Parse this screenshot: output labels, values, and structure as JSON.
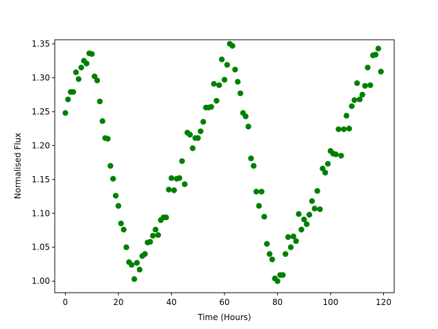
{
  "chart_data": {
    "type": "scatter",
    "title": "",
    "xlabel": "Time (Hours)",
    "ylabel": "Normalised Flux",
    "xlim": [
      -4,
      124
    ],
    "ylim": [
      0.983,
      1.356
    ],
    "xticks": [
      0,
      20,
      40,
      60,
      80,
      100,
      120
    ],
    "yticks": [
      1.0,
      1.05,
      1.1,
      1.15,
      1.2,
      1.25,
      1.3,
      1.35
    ],
    "xtick_labels": [
      "0",
      "20",
      "40",
      "60",
      "80",
      "100",
      "120"
    ],
    "ytick_labels": [
      "1.00",
      "1.05",
      "1.10",
      "1.15",
      "1.20",
      "1.25",
      "1.30",
      "1.35"
    ],
    "grid": false,
    "marker_color": "#008000",
    "series": [
      {
        "x": [
          0,
          1,
          2,
          3,
          4,
          5,
          6,
          7,
          8,
          9,
          10,
          11,
          12,
          13,
          14,
          15,
          16,
          17,
          18,
          19,
          20,
          21,
          22,
          23,
          24,
          25,
          26,
          27,
          28,
          29,
          30,
          31,
          32,
          33,
          34,
          35,
          36,
          37,
          38,
          39,
          40,
          41,
          42,
          43,
          44,
          45,
          46,
          47,
          48,
          49,
          50,
          51,
          52,
          53,
          54,
          55,
          56,
          57,
          58,
          59,
          60,
          61,
          62,
          63,
          64,
          65,
          66,
          67,
          68,
          69,
          70,
          71,
          72,
          73,
          74,
          75,
          76,
          77,
          78,
          79,
          80,
          81,
          82,
          83,
          84,
          85,
          86,
          87,
          88,
          89,
          90,
          91,
          92,
          93,
          94,
          95,
          96,
          97,
          98,
          99,
          100,
          101,
          102,
          103,
          104,
          105,
          106,
          107,
          108,
          109,
          110,
          111,
          112,
          113,
          114,
          115,
          116,
          117,
          118,
          119
        ],
        "y": [
          1.248,
          1.268,
          1.279,
          1.279,
          1.308,
          1.298,
          1.315,
          1.325,
          1.321,
          1.336,
          1.335,
          1.302,
          1.296,
          1.265,
          1.236,
          1.211,
          1.21,
          1.17,
          1.151,
          1.126,
          1.111,
          1.085,
          1.076,
          1.05,
          1.028,
          1.024,
          1.003,
          1.027,
          1.017,
          1.037,
          1.04,
          1.057,
          1.058,
          1.067,
          1.076,
          1.068,
          1.09,
          1.094,
          1.094,
          1.135,
          1.152,
          1.134,
          1.151,
          1.152,
          1.177,
          1.143,
          1.219,
          1.216,
          1.196,
          1.211,
          1.211,
          1.221,
          1.235,
          1.256,
          1.256,
          1.257,
          1.291,
          1.266,
          1.289,
          1.327,
          1.297,
          1.319,
          1.35,
          1.347,
          1.312,
          1.294,
          1.277,
          1.248,
          1.243,
          1.228,
          1.181,
          1.17,
          1.132,
          1.111,
          1.132,
          1.095,
          1.055,
          1.04,
          1.032,
          1.004,
          1.0,
          1.009,
          1.009,
          1.04,
          1.065,
          1.05,
          1.066,
          1.059,
          1.099,
          1.076,
          1.091,
          1.084,
          1.098,
          1.118,
          1.107,
          1.133,
          1.106,
          1.166,
          1.16,
          1.173,
          1.192,
          1.188,
          1.187,
          1.224,
          1.185,
          1.224,
          1.244,
          1.225,
          1.258,
          1.267,
          1.292,
          1.268,
          1.275,
          1.288,
          1.315,
          1.289,
          1.333,
          1.334,
          1.343,
          1.309
        ]
      }
    ]
  }
}
